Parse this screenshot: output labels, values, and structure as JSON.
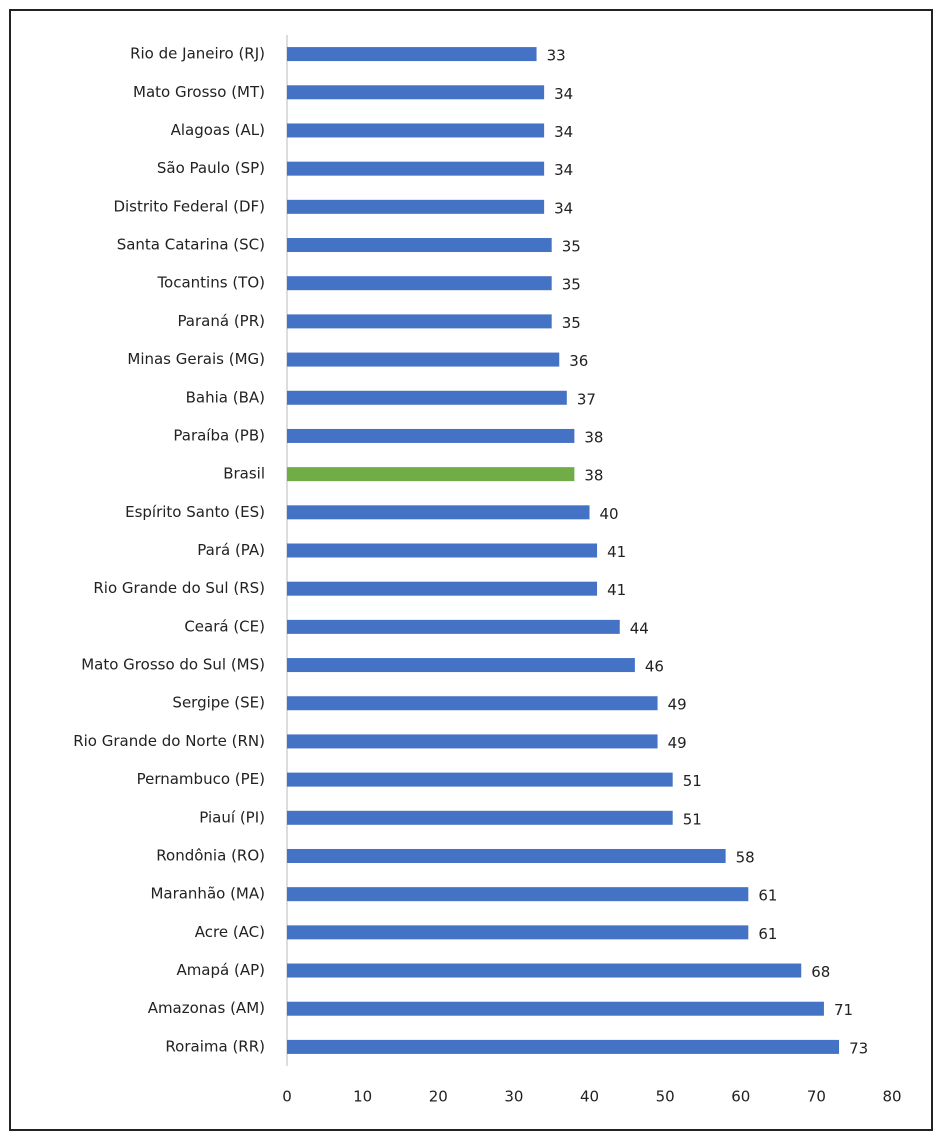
{
  "chart_data": {
    "type": "barh",
    "categories": [
      "Rio de Janeiro (RJ)",
      "Mato Grosso (MT)",
      "Alagoas (AL)",
      "São Paulo (SP)",
      "Distrito Federal (DF)",
      "Santa Catarina (SC)",
      "Tocantins (TO)",
      "Paraná (PR)",
      "Minas Gerais (MG)",
      "Bahia (BA)",
      "Paraíba (PB)",
      "Brasil",
      "Espírito Santo (ES)",
      "Pará (PA)",
      "Rio Grande do Sul (RS)",
      "Ceará (CE)",
      "Mato Grosso do Sul (MS)",
      "Sergipe (SE)",
      "Rio Grande do Norte (RN)",
      "Pernambuco (PE)",
      "Piauí (PI)",
      "Rondônia (RO)",
      "Maranhão (MA)",
      "Acre (AC)",
      "Amapá (AP)",
      "Amazonas (AM)",
      "Roraima (RR)"
    ],
    "values": [
      33,
      34,
      34,
      34,
      34,
      35,
      35,
      35,
      36,
      37,
      38,
      38,
      40,
      41,
      41,
      44,
      46,
      49,
      49,
      51,
      51,
      58,
      61,
      61,
      68,
      71,
      73
    ],
    "colors": [
      "#4472c4",
      "#4472c4",
      "#4472c4",
      "#4472c4",
      "#4472c4",
      "#4472c4",
      "#4472c4",
      "#4472c4",
      "#4472c4",
      "#4472c4",
      "#4472c4",
      "#70ad47",
      "#4472c4",
      "#4472c4",
      "#4472c4",
      "#4472c4",
      "#4472c4",
      "#4472c4",
      "#4472c4",
      "#4472c4",
      "#4472c4",
      "#4472c4",
      "#4472c4",
      "#4472c4",
      "#4472c4",
      "#4472c4",
      "#4472c4"
    ],
    "xlim": [
      0,
      80
    ],
    "xticks": [
      0,
      10,
      20,
      30,
      40,
      50,
      60,
      70,
      80
    ],
    "grid": false
  }
}
